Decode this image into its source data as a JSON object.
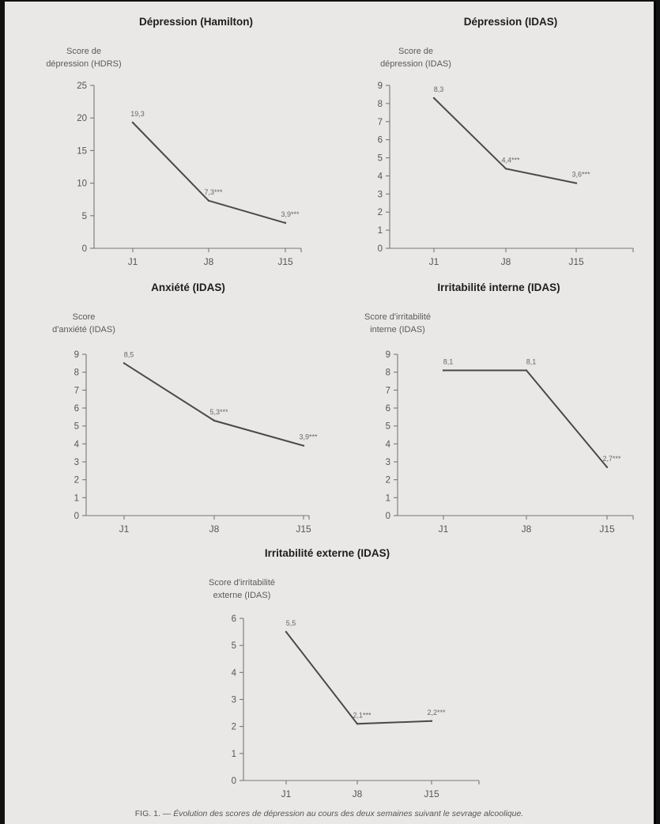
{
  "caption": {
    "prefix": "FIG. 1. —",
    "text": "Évolution des scores de dépression au cours des deux semaines suivant le sevrage alcoolique."
  },
  "chart_data": [
    {
      "type": "line",
      "title": "Dépression (Hamilton)",
      "ylabel": [
        "Score de",
        "dépression (HDRS)"
      ],
      "categories": [
        "J1",
        "J8",
        "J15"
      ],
      "values": [
        19.3,
        7.3,
        3.9
      ],
      "data_labels": [
        "19,3",
        "7,3***",
        "3,9***"
      ],
      "yticks": [
        0,
        5,
        10,
        15,
        20,
        25
      ],
      "ylim": [
        0,
        25
      ]
    },
    {
      "type": "line",
      "title": "Dépression (IDAS)",
      "ylabel": [
        "Score de",
        "dépression (IDAS)"
      ],
      "categories": [
        "J1",
        "J8",
        "J15"
      ],
      "values": [
        8.3,
        4.4,
        3.6
      ],
      "data_labels": [
        "8,3",
        "4,4***",
        "3,6***"
      ],
      "yticks": [
        0,
        1,
        2,
        3,
        4,
        5,
        6,
        7,
        8,
        9
      ],
      "ylim": [
        0,
        9
      ]
    },
    {
      "type": "line",
      "title": "Anxiété (IDAS)",
      "ylabel": [
        "Score",
        "d'anxiété (IDAS)"
      ],
      "categories": [
        "J1",
        "J8",
        "J15"
      ],
      "values": [
        8.5,
        5.3,
        3.9
      ],
      "data_labels": [
        "8,5",
        "5,3***",
        "3,9***"
      ],
      "yticks": [
        0,
        1,
        2,
        3,
        4,
        5,
        6,
        7,
        8,
        9
      ],
      "ylim": [
        0,
        9
      ]
    },
    {
      "type": "line",
      "title": "Irritabilité interne (IDAS)",
      "ylabel": [
        "Score d'irritabilité",
        "interne (IDAS)"
      ],
      "categories": [
        "J1",
        "J8",
        "J15"
      ],
      "values": [
        8.1,
        8.1,
        2.7
      ],
      "data_labels": [
        "8,1",
        "8,1",
        "2,7***"
      ],
      "yticks": [
        0,
        1,
        2,
        3,
        4,
        5,
        6,
        7,
        8,
        9
      ],
      "ylim": [
        0,
        9
      ]
    },
    {
      "type": "line",
      "title": "Irritabilité externe (IDAS)",
      "ylabel": [
        "Score d'irritabilité",
        "externe (IDAS)"
      ],
      "categories": [
        "J1",
        "J8",
        "J15"
      ],
      "values": [
        5.5,
        2.1,
        2.2
      ],
      "data_labels": [
        "5,5",
        "2,1***",
        "2,2***"
      ],
      "yticks": [
        0,
        1,
        2,
        3,
        4,
        5,
        6
      ],
      "ylim": [
        0,
        6
      ]
    }
  ]
}
